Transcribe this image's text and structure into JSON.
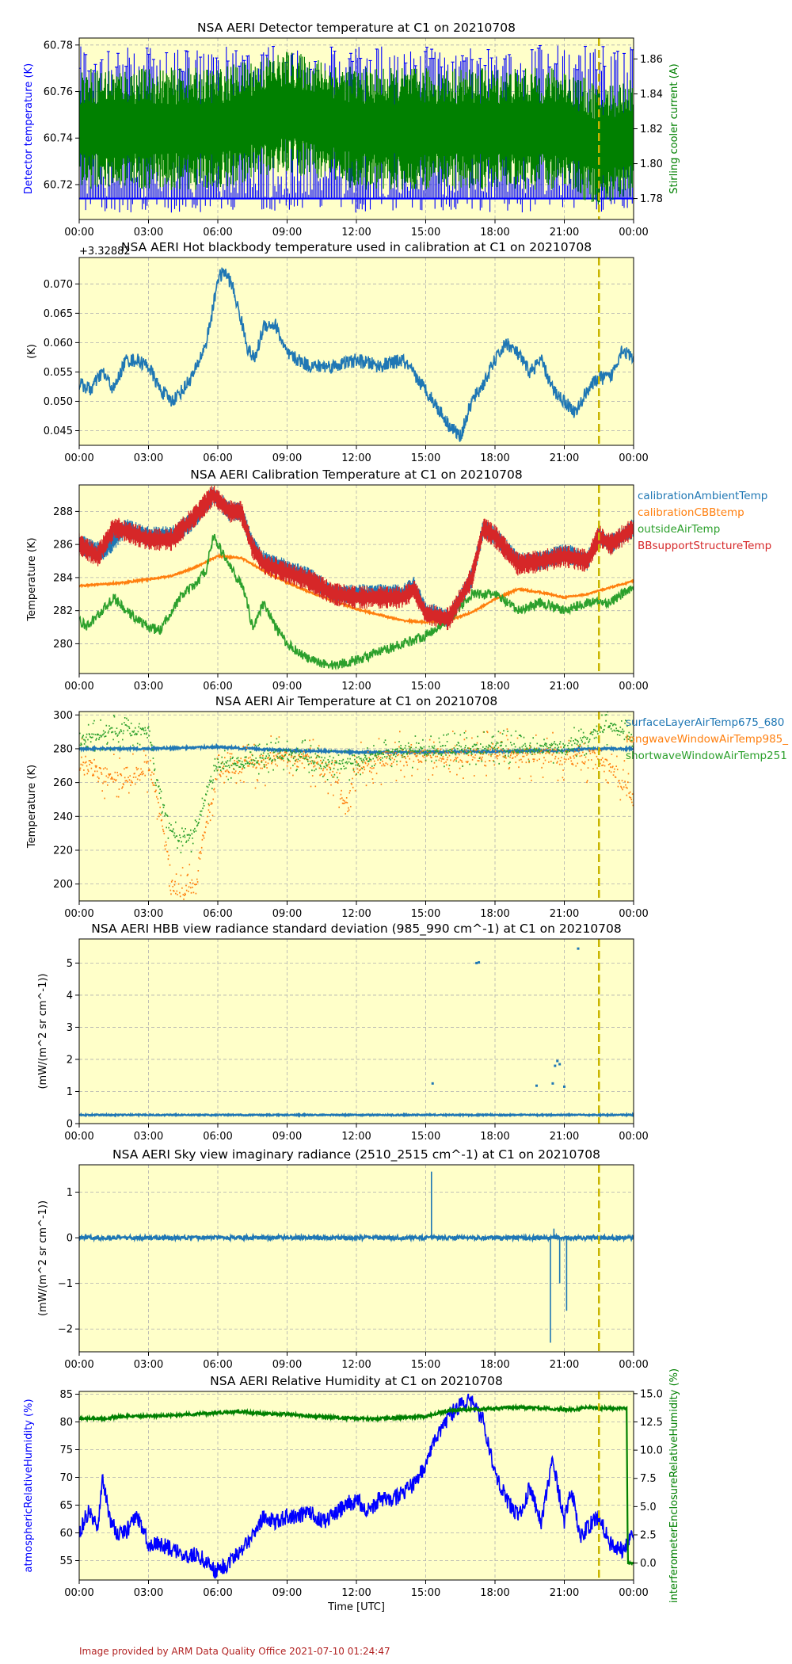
{
  "footer": {
    "credit": "Image provided by ARM Data Quality Office 2021-07-10 01:24:47"
  },
  "colors": {
    "plot_bg": "#ffffc9",
    "marker_line": "#c8b400",
    "blue": "#1f77b4",
    "orange": "#ff7f0e",
    "green": "#2ca02c",
    "red": "#d62728",
    "pure_blue": "#0000ff",
    "pure_green": "#008000"
  },
  "chart_data": [
    {
      "type": "line",
      "title": "NSA AERI Detector temperature at C1 on 20210708",
      "xlabel": "",
      "ylabel": "Detector temperature (K)",
      "y2label": "Stirling cooler current (A)",
      "x_ticks": [
        "00:00",
        "03:00",
        "06:00",
        "09:00",
        "12:00",
        "15:00",
        "18:00",
        "21:00",
        "00:00"
      ],
      "xlim": [
        0,
        24
      ],
      "ylim": [
        60.705,
        60.783
      ],
      "yticks": [
        60.72,
        60.74,
        60.76,
        60.78
      ],
      "y2lim": [
        1.768,
        1.872
      ],
      "y2ticks": [
        1.78,
        1.8,
        1.82,
        1.84,
        1.86
      ],
      "marker_hour": 22.5,
      "series": [
        {
          "name": "Detector temperature",
          "axis": "left",
          "color": "#0000ff",
          "style": "spiky",
          "base": 60.714,
          "top": 60.78,
          "bottom": 60.708,
          "x": [
            0,
            24
          ],
          "y": [
            60.714,
            60.714
          ]
        },
        {
          "name": "Stirling cooler current",
          "axis": "right",
          "color": "#008000",
          "style": "band",
          "x": [
            0,
            3,
            6,
            9,
            12,
            15,
            18,
            21,
            22.5,
            24
          ],
          "y": [
            1.82,
            1.82,
            1.82,
            1.83,
            1.82,
            1.82,
            1.82,
            1.82,
            1.81,
            1.815
          ],
          "amp": 0.035
        }
      ]
    },
    {
      "type": "line",
      "title": "NSA AERI Hot blackbody temperature used in calibration at C1 on 20210708",
      "offset_label": "+3.32882",
      "xlabel": "",
      "ylabel": "(K)",
      "x_ticks": [
        "00:00",
        "03:00",
        "06:00",
        "09:00",
        "12:00",
        "15:00",
        "18:00",
        "21:00",
        "00:00"
      ],
      "xlim": [
        0,
        24
      ],
      "ylim": [
        0.0425,
        0.0745
      ],
      "yticks": [
        0.045,
        0.05,
        0.055,
        0.06,
        0.065,
        0.07
      ],
      "marker_hour": 22.5,
      "series": [
        {
          "name": "",
          "color": "#1f77b4",
          "style": "scatterline",
          "x": [
            0,
            0.5,
            1,
            1.5,
            2,
            2.5,
            3,
            3.5,
            4,
            4.5,
            5,
            5.5,
            5.8,
            6,
            6.3,
            6.6,
            7,
            7.3,
            7.6,
            8,
            8.5,
            9,
            9.5,
            10,
            11,
            12,
            13,
            14,
            15,
            15.5,
            16,
            16.5,
            17,
            17.5,
            18,
            18.5,
            19,
            19.5,
            20,
            20.5,
            21,
            21.5,
            22,
            22.5,
            23,
            23.5,
            24
          ],
          "y": [
            0.053,
            0.052,
            0.055,
            0.052,
            0.057,
            0.057,
            0.056,
            0.052,
            0.05,
            0.052,
            0.055,
            0.06,
            0.066,
            0.071,
            0.072,
            0.07,
            0.064,
            0.059,
            0.057,
            0.063,
            0.063,
            0.058,
            0.057,
            0.056,
            0.056,
            0.057,
            0.056,
            0.057,
            0.052,
            0.049,
            0.046,
            0.044,
            0.05,
            0.053,
            0.057,
            0.06,
            0.058,
            0.055,
            0.057,
            0.052,
            0.05,
            0.048,
            0.052,
            0.054,
            0.054,
            0.059,
            0.057
          ],
          "amp": 0.0012
        }
      ]
    },
    {
      "type": "scatter",
      "title": "NSA AERI Calibration Temperature at C1 on 20210708",
      "xlabel": "",
      "ylabel": "Temperature (K)",
      "x_ticks": [
        "00:00",
        "03:00",
        "06:00",
        "09:00",
        "12:00",
        "15:00",
        "18:00",
        "21:00",
        "00:00"
      ],
      "xlim": [
        0,
        24
      ],
      "ylim": [
        278.2,
        289.6
      ],
      "yticks": [
        280,
        282,
        284,
        286,
        288
      ],
      "legend": "right-outside",
      "marker_hour": 22.5,
      "series": [
        {
          "name": "calibrationAmbientTemp",
          "color": "#1f77b4",
          "style": "band",
          "x": [
            0,
            1,
            2,
            3,
            4,
            5,
            5.8,
            6.5,
            7,
            7.5,
            8,
            9,
            10,
            11,
            12,
            13,
            14,
            14.5,
            15,
            16,
            17,
            17.5,
            18,
            19,
            20,
            21,
            22,
            22.5,
            23,
            24
          ],
          "y": [
            286,
            285.5,
            287,
            286.5,
            286.5,
            287.5,
            289,
            288,
            288,
            286,
            285,
            284.5,
            284,
            283,
            283,
            283,
            283,
            283.5,
            282,
            281.5,
            284,
            287,
            286.5,
            285,
            285,
            285.5,
            285,
            286.5,
            286,
            287
          ],
          "amp": 0.6
        },
        {
          "name": "calibrationCBBtemp",
          "color": "#ff7f0e",
          "style": "line",
          "x": [
            0,
            2,
            4,
            5,
            6,
            7,
            8,
            9,
            10,
            12,
            14,
            15,
            16,
            17,
            18,
            19,
            20,
            21,
            22,
            23,
            24
          ],
          "y": [
            283.5,
            283.7,
            284.1,
            284.6,
            285.3,
            285.2,
            284.4,
            283.7,
            283.1,
            282.1,
            281.4,
            281.3,
            281.4,
            281.9,
            282.7,
            283.3,
            283.1,
            282.8,
            283.0,
            283.4,
            283.8
          ],
          "amp": 0.05
        },
        {
          "name": "outsideAirTemp",
          "color": "#2ca02c",
          "style": "scatterline",
          "x": [
            0,
            0.3,
            1,
            1.5,
            2,
            2.5,
            3,
            3.5,
            4,
            4.5,
            5,
            5.5,
            5.8,
            6.2,
            6.8,
            7.1,
            7.5,
            8,
            8.5,
            9,
            9.5,
            10,
            11,
            12,
            13,
            14,
            15,
            16,
            17,
            18,
            19,
            20,
            21,
            22,
            23,
            24
          ],
          "y": [
            281.5,
            281,
            282,
            282.8,
            282,
            281.5,
            281,
            280.8,
            282,
            283,
            283.5,
            284.5,
            286.5,
            285.5,
            284,
            283.5,
            281,
            282.5,
            281,
            280,
            279.5,
            279,
            278.7,
            279,
            279.5,
            280,
            280.5,
            281.5,
            283,
            283,
            282,
            282.5,
            282,
            282.5,
            282.5,
            283.5
          ],
          "amp": 0.3
        },
        {
          "name": "BBsupportStructureTemp",
          "color": "#d62728",
          "style": "band",
          "x": [
            0,
            0.8,
            1.5,
            2,
            3,
            4,
            5,
            5.8,
            6.5,
            7,
            7.5,
            8,
            9,
            10,
            11,
            12,
            13,
            14,
            14.5,
            15,
            16,
            17,
            17.5,
            18,
            19,
            20,
            21,
            22,
            22.5,
            23,
            24
          ],
          "y": [
            286,
            285.3,
            287,
            286.8,
            286.3,
            286.3,
            287.7,
            289,
            288,
            288,
            285.8,
            284.8,
            284.3,
            283.8,
            283,
            282.8,
            282.8,
            282.8,
            283.3,
            281.8,
            281.5,
            284,
            287,
            286.5,
            284.8,
            285,
            285.3,
            285,
            286.5,
            286,
            287
          ],
          "amp": 0.7
        }
      ]
    },
    {
      "type": "scatter",
      "title": "NSA AERI Air Temperature at C1 on 20210708",
      "xlabel": "",
      "ylabel": "Temperature (K)",
      "x_ticks": [
        "00:00",
        "03:00",
        "06:00",
        "09:00",
        "12:00",
        "15:00",
        "18:00",
        "21:00",
        "00:00"
      ],
      "xlim": [
        0,
        24
      ],
      "ylim": [
        190,
        302
      ],
      "yticks": [
        200,
        220,
        240,
        260,
        280,
        300
      ],
      "legend": "right-outside",
      "marker_hour": 22.5,
      "series": [
        {
          "name": "surfaceLayerAirTemp675_680",
          "color": "#1f77b4",
          "style": "line",
          "x": [
            0,
            3,
            6,
            9,
            12,
            15,
            21,
            22,
            23,
            24
          ],
          "y": [
            280,
            280,
            281,
            279,
            278,
            278,
            279,
            280,
            280,
            280
          ],
          "amp": 0.6
        },
        {
          "name": "longwaveWindowAirTemp985_",
          "color": "#ff7f0e",
          "style": "scatter",
          "x": [
            0,
            1,
            2,
            3,
            3.5,
            4,
            4.5,
            5,
            5.5,
            6,
            7,
            8,
            9,
            10,
            11,
            11.5,
            12,
            13,
            14,
            17.5,
            18,
            21,
            22.5,
            23,
            24
          ],
          "y": [
            272,
            265,
            260,
            270,
            240,
            200,
            195,
            200,
            240,
            265,
            270,
            272,
            274,
            272,
            265,
            245,
            268,
            273,
            276,
            276,
            277,
            275,
            275,
            270,
            250
          ],
          "amp": 15
        },
        {
          "name": "shortwaveWindowAirTemp251",
          "color": "#2ca02c",
          "style": "scatter",
          "x": [
            0,
            1,
            2,
            3,
            3.5,
            4,
            4.5,
            5,
            5.5,
            6,
            7,
            8,
            9,
            10,
            11,
            12,
            13,
            14,
            17.5,
            18,
            21,
            22.5,
            23,
            24
          ],
          "y": [
            285,
            288,
            292,
            290,
            250,
            230,
            225,
            230,
            255,
            270,
            272,
            275,
            277,
            275,
            270,
            272,
            276,
            278,
            280,
            281,
            280,
            290,
            293,
            285
          ],
          "amp": 10
        }
      ]
    },
    {
      "type": "scatter",
      "title": "NSA AERI HBB view radiance standard deviation (985_990 cm^-1) at C1 on 20210708",
      "xlabel": "",
      "ylabel": "(mW/(m^2 sr cm^-1))",
      "x_ticks": [
        "00:00",
        "03:00",
        "06:00",
        "09:00",
        "12:00",
        "15:00",
        "18:00",
        "21:00",
        "00:00"
      ],
      "xlim": [
        0,
        24
      ],
      "ylim": [
        0,
        5.75
      ],
      "yticks": [
        0,
        1,
        2,
        3,
        4,
        5
      ],
      "marker_hour": 22.5,
      "series": [
        {
          "name": "",
          "color": "#1f77b4",
          "style": "line",
          "x": [
            0,
            24
          ],
          "y": [
            0.27,
            0.27
          ],
          "amp": 0.02
        },
        {
          "name": "",
          "color": "#1f77b4",
          "style": "points",
          "x": [
            15.3,
            17.2,
            17.3,
            19.8,
            20.5,
            20.6,
            20.7,
            20.8,
            21.0,
            21.6
          ],
          "y": [
            1.25,
            5.0,
            5.02,
            1.18,
            1.25,
            1.8,
            1.95,
            1.85,
            1.15,
            5.45
          ]
        }
      ]
    },
    {
      "type": "line",
      "title": "NSA AERI Sky view imaginary radiance (2510_2515 cm^-1) at C1 on 20210708",
      "xlabel": "",
      "ylabel": "(mW/(m^2 sr cm^-1))",
      "x_ticks": [
        "00:00",
        "03:00",
        "06:00",
        "09:00",
        "12:00",
        "15:00",
        "18:00",
        "21:00",
        "00:00"
      ],
      "xlim": [
        0,
        24
      ],
      "ylim": [
        -2.5,
        1.6
      ],
      "yticks": [
        -2,
        -1,
        0,
        1
      ],
      "marker_hour": 22.5,
      "series": [
        {
          "name": "",
          "color": "#1f77b4",
          "style": "line",
          "x": [
            0,
            24
          ],
          "y": [
            0,
            0
          ],
          "amp": 0.04
        },
        {
          "name": "",
          "color": "#1f77b4",
          "style": "spikes",
          "x": [
            15.25,
            20.4,
            20.55,
            20.8,
            21.1
          ],
          "y": [
            1.45,
            -2.3,
            0.2,
            -1.0,
            -1.6
          ]
        }
      ]
    },
    {
      "type": "line",
      "title": "NSA AERI Relative Humidity at C1 on 20210708",
      "xlabel": "Time [UTC]",
      "ylabel": "atmosphericRelativeHumidity (%)",
      "y2label": "interferometerEnclosureRelativeHumidity (%)",
      "x_ticks": [
        "00:00",
        "03:00",
        "06:00",
        "09:00",
        "12:00",
        "15:00",
        "18:00",
        "21:00",
        "00:00"
      ],
      "xlim": [
        0,
        24
      ],
      "ylim": [
        51.5,
        85.5
      ],
      "yticks": [
        55,
        60,
        65,
        70,
        75,
        80,
        85
      ],
      "y2lim": [
        -1.5,
        15.2
      ],
      "y2ticks": [
        0.0,
        2.5,
        5.0,
        7.5,
        10.0,
        12.5,
        15.0
      ],
      "marker_hour": 22.5,
      "series": [
        {
          "name": "atmosphericRelativeHumidity",
          "axis": "left",
          "color": "#0000ff",
          "style": "scatterline",
          "x": [
            0,
            0.4,
            0.8,
            1,
            1.3,
            1.6,
            2,
            2.5,
            3,
            3.5,
            4,
            4.5,
            5,
            5.5,
            5.9,
            6.3,
            6.8,
            7.2,
            7.6,
            8,
            8.5,
            9,
            9.5,
            10,
            10.5,
            11,
            11.5,
            12,
            12.5,
            13,
            13.5,
            14,
            14.5,
            15,
            15.3,
            15.7,
            16,
            16.5,
            17,
            17.5,
            18,
            18.5,
            19,
            19.5,
            20,
            20.5,
            21,
            21.3,
            21.7,
            22,
            22.5,
            23,
            23.5,
            24
          ],
          "y": [
            60,
            64,
            61,
            70,
            63,
            60,
            60,
            63,
            58,
            58,
            57,
            56,
            56,
            55,
            53,
            54,
            56,
            58,
            60,
            63,
            62,
            63,
            63,
            64,
            62,
            63,
            65,
            66,
            64,
            66,
            66,
            67,
            69,
            72,
            76,
            79,
            81,
            83,
            84,
            80,
            71,
            66,
            63,
            68,
            62,
            73,
            62,
            68,
            59,
            61,
            63,
            58,
            57,
            60
          ],
          "amp": 1.5
        },
        {
          "name": "interferometerEnclosureRelativeHumidity",
          "axis": "right",
          "color": "#008000",
          "style": "line",
          "x": [
            0,
            1,
            2,
            3,
            4,
            5,
            6,
            7,
            8,
            9,
            10,
            11,
            12,
            13,
            14,
            15,
            16,
            17,
            18,
            19,
            20,
            21,
            21.5,
            22,
            22.5,
            23,
            23.7,
            23.75,
            24
          ],
          "y": [
            12.8,
            12.8,
            13.0,
            13.0,
            13.1,
            13.2,
            13.3,
            13.4,
            13.2,
            13.2,
            13.0,
            12.9,
            12.8,
            12.8,
            12.9,
            13.0,
            13.5,
            13.6,
            13.7,
            13.8,
            13.7,
            13.6,
            13.6,
            13.8,
            13.7,
            13.7,
            13.7,
            0.0,
            0.0
          ],
          "amp": 0.12
        }
      ]
    }
  ]
}
